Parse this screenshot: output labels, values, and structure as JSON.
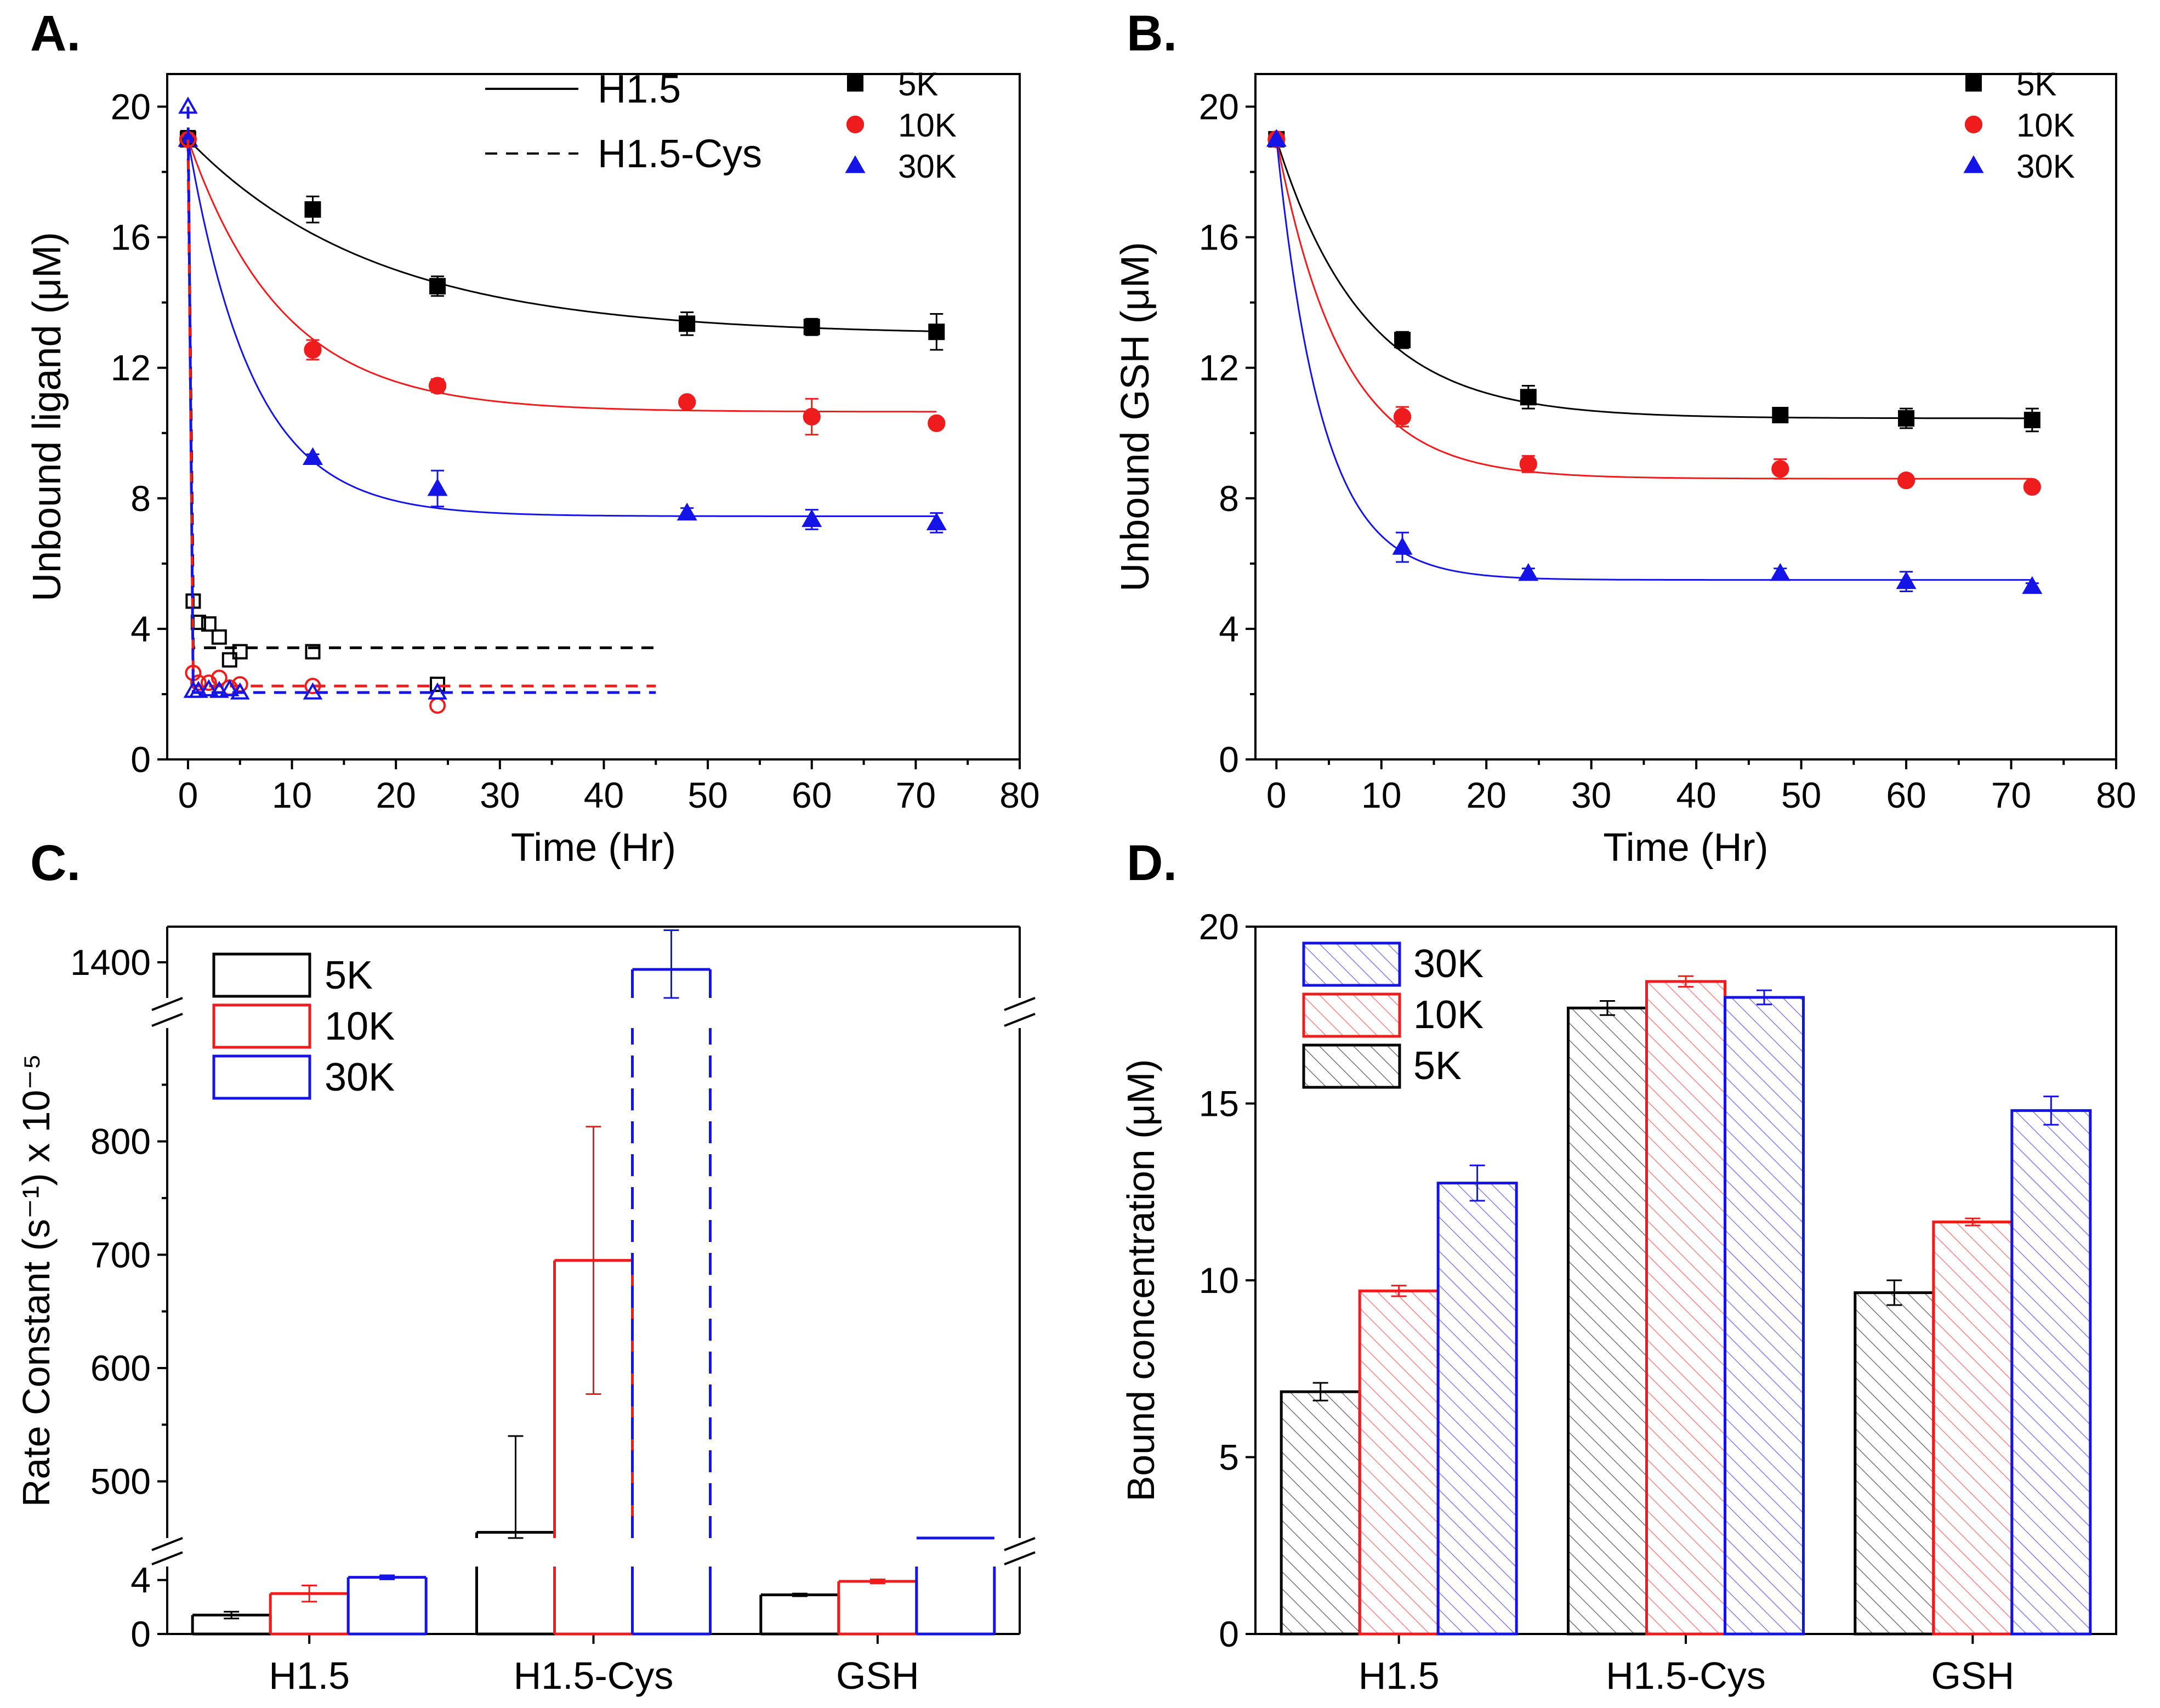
{
  "figure": {
    "panels": [
      "A.",
      "B.",
      "C.",
      "D."
    ]
  },
  "colors": {
    "5K": "#000000",
    "10K": "#ee1c1c",
    "30K": "#1414e6"
  },
  "chart_data": [
    {
      "panel": "A.",
      "type": "scatter",
      "xlabel": "Time (Hr)",
      "ylabel": "Unbound ligand (μM)",
      "xlim": [
        -2,
        80
      ],
      "ylim": [
        0,
        21
      ],
      "xticks": [
        0,
        10,
        20,
        30,
        40,
        50,
        60,
        70,
        80
      ],
      "yticks": [
        0,
        4,
        8,
        12,
        16,
        20
      ],
      "legend_lines": [
        {
          "label": "H1.5",
          "style": "solid"
        },
        {
          "label": "H1.5-Cys",
          "style": "dashed"
        }
      ],
      "legend_markers": [
        {
          "label": "5K",
          "marker": "square"
        },
        {
          "label": "10K",
          "marker": "circle"
        },
        {
          "label": "30K",
          "marker": "triangle"
        }
      ],
      "series": [
        {
          "name": "5K",
          "group": "H1.5",
          "filled": true,
          "marker": "square",
          "x": [
            0,
            12,
            24,
            48,
            60,
            72
          ],
          "y": [
            19,
            16.85,
            14.5,
            13.35,
            13.25,
            13.1
          ],
          "err": [
            0,
            0.4,
            0.3,
            0.35,
            0.25,
            0.55
          ],
          "fit": {
            "y0": 19,
            "yinf": 13.0,
            "k": 0.055,
            "xmax": 72
          }
        },
        {
          "name": "10K",
          "group": "H1.5",
          "filled": true,
          "marker": "circle",
          "x": [
            0,
            12,
            24,
            48,
            60,
            72
          ],
          "y": [
            19,
            12.55,
            11.45,
            10.95,
            10.5,
            10.3
          ],
          "err": [
            0,
            0.3,
            0.2,
            0.1,
            0.55,
            0.1
          ],
          "fit": {
            "y0": 19,
            "yinf": 10.65,
            "k": 0.11,
            "xmax": 72
          }
        },
        {
          "name": "30K",
          "group": "H1.5",
          "filled": true,
          "marker": "triangle",
          "x": [
            0,
            12,
            24,
            48,
            60,
            72
          ],
          "y": [
            19,
            9.25,
            8.3,
            7.55,
            7.35,
            7.25
          ],
          "err": [
            0,
            0.1,
            0.55,
            0.15,
            0.3,
            0.3
          ],
          "fit": {
            "y0": 19,
            "yinf": 7.45,
            "k": 0.16,
            "xmax": 72
          }
        },
        {
          "name": "5K",
          "group": "H1.5-Cys",
          "filled": false,
          "marker": "square",
          "x": [
            0,
            0.5,
            1,
            2,
            3,
            4,
            5,
            12,
            24
          ],
          "y": [
            19.05,
            4.85,
            4.2,
            4.15,
            3.75,
            3.05,
            3.3,
            3.3,
            2.3
          ],
          "plateau": {
            "y": 3.42,
            "xmax": 45
          }
        },
        {
          "name": "10K",
          "group": "H1.5-Cys",
          "filled": false,
          "marker": "circle",
          "x": [
            0,
            0.5,
            1,
            2,
            3,
            4,
            5,
            12,
            24
          ],
          "y": [
            19.0,
            2.65,
            2.35,
            2.35,
            2.5,
            2.2,
            2.3,
            2.25,
            1.65
          ],
          "plateau": {
            "y": 2.25,
            "xmax": 45
          }
        },
        {
          "name": "30K",
          "group": "H1.5-Cys",
          "filled": false,
          "marker": "triangle",
          "x": [
            0,
            0.5,
            1,
            2,
            3,
            4,
            5,
            12,
            24
          ],
          "y": [
            20.0,
            2.1,
            2.1,
            2.15,
            2.1,
            2.15,
            2.05,
            2.05,
            2.05
          ],
          "plateau": {
            "y": 2.05,
            "xmax": 45
          }
        }
      ]
    },
    {
      "panel": "B.",
      "type": "scatter",
      "xlabel": "Time (Hr)",
      "ylabel": "Unbound GSH (μM)",
      "xlim": [
        -2,
        80
      ],
      "ylim": [
        0,
        21
      ],
      "xticks": [
        0,
        10,
        20,
        30,
        40,
        50,
        60,
        70,
        80
      ],
      "yticks": [
        0,
        4,
        8,
        12,
        16,
        20
      ],
      "legend_markers": [
        {
          "label": "5K",
          "marker": "square"
        },
        {
          "label": "10K",
          "marker": "circle"
        },
        {
          "label": "30K",
          "marker": "triangle"
        }
      ],
      "series": [
        {
          "name": "5K",
          "filled": true,
          "marker": "square",
          "x": [
            0,
            12,
            24,
            48,
            60,
            72
          ],
          "y": [
            19,
            12.85,
            11.1,
            10.55,
            10.45,
            10.4
          ],
          "err": [
            0,
            0.25,
            0.35,
            0.1,
            0.3,
            0.35
          ],
          "fit": {
            "y0": 19,
            "yinf": 10.45,
            "k": 0.12,
            "xmax": 72
          }
        },
        {
          "name": "10K",
          "filled": true,
          "marker": "circle",
          "x": [
            0,
            12,
            24,
            48,
            60,
            72
          ],
          "y": [
            19,
            10.5,
            9.05,
            8.9,
            8.55,
            8.35
          ],
          "err": [
            0,
            0.3,
            0.25,
            0.3,
            0.1,
            0.1
          ],
          "fit": {
            "y0": 19,
            "yinf": 8.6,
            "k": 0.16,
            "xmax": 72
          }
        },
        {
          "name": "30K",
          "filled": true,
          "marker": "triangle",
          "x": [
            0,
            12,
            24,
            48,
            60,
            72
          ],
          "y": [
            19,
            6.5,
            5.7,
            5.7,
            5.45,
            5.3
          ],
          "err": [
            0,
            0.45,
            0.15,
            0.15,
            0.3,
            0.1
          ],
          "fit": {
            "y0": 19,
            "yinf": 5.5,
            "k": 0.23,
            "xmax": 72
          }
        }
      ]
    },
    {
      "panel": "C.",
      "type": "bar",
      "ylabel": "Rate Constant (s⁻¹) x 10⁻⁵",
      "categories": [
        "H1.5",
        "H1.5-Cys",
        "GSH"
      ],
      "axis_breaks": [
        [
          5,
          450
        ],
        [
          900,
          1350
        ]
      ],
      "yticks_low": [
        0,
        4
      ],
      "yticks_mid": [
        500,
        600,
        700,
        800
      ],
      "yticks_high": [
        1400
      ],
      "series": [
        {
          "name": "5K",
          "values": [
            1.4,
            455,
            2.9
          ],
          "err": [
            0.25,
            85,
            0.1
          ]
        },
        {
          "name": "10K",
          "values": [
            3.0,
            695,
            3.9
          ],
          "err": [
            0.6,
            118,
            0.15
          ]
        },
        {
          "name": "30K",
          "values": [
            4.2,
            1390,
            6.1
          ],
          "err": [
            0.15,
            55,
            0.1
          ]
        }
      ]
    },
    {
      "panel": "D.",
      "type": "bar",
      "ylabel": "Bound concentration (μM)",
      "categories": [
        "H1.5",
        "H1.5-Cys",
        "GSH"
      ],
      "ylim": [
        0,
        20
      ],
      "yticks": [
        0,
        5,
        10,
        15,
        20
      ],
      "legend_order": [
        "30K",
        "10K",
        "5K"
      ],
      "series": [
        {
          "name": "5K",
          "values": [
            6.85,
            17.7,
            9.65
          ],
          "err": [
            0.25,
            0.2,
            0.35
          ]
        },
        {
          "name": "10K",
          "values": [
            9.7,
            18.45,
            11.65
          ],
          "err": [
            0.15,
            0.15,
            0.1
          ]
        },
        {
          "name": "30K",
          "values": [
            12.75,
            18.0,
            14.8
          ],
          "err": [
            0.5,
            0.2,
            0.4
          ]
        }
      ]
    }
  ]
}
